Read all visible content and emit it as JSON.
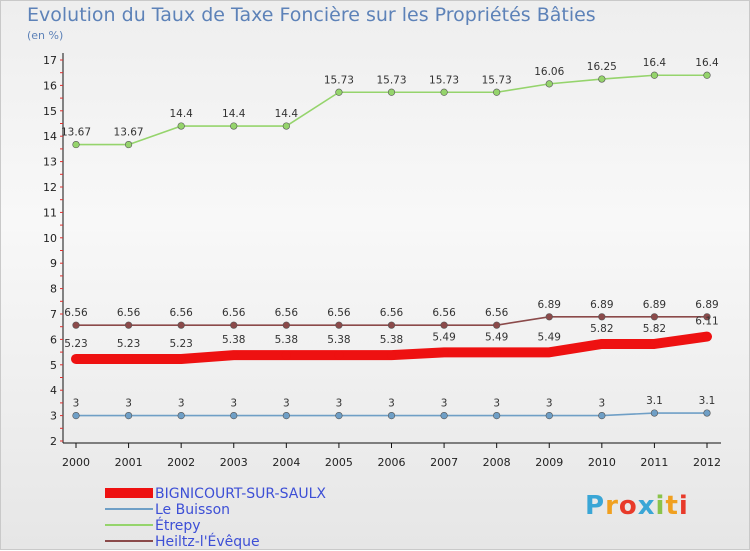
{
  "chart_data": {
    "type": "line",
    "title": "Evolution du Taux de Taxe Foncière sur les Propriétés Bâties",
    "unit": "(en %)",
    "x": [
      "2000",
      "2001",
      "2002",
      "2003",
      "2004",
      "2005",
      "2006",
      "2007",
      "2008",
      "2009",
      "2010",
      "2011",
      "2012"
    ],
    "ylim": [
      2,
      17
    ],
    "yticks": [
      "2",
      "3",
      "4",
      "5",
      "6",
      "7",
      "8",
      "9",
      "10",
      "11",
      "12",
      "13",
      "14",
      "15",
      "16",
      "17"
    ],
    "series": [
      {
        "name": "BIGNICOURT-SUR-SAULX",
        "color": "#ee1111",
        "values": [
          5.23,
          5.23,
          5.23,
          5.38,
          5.38,
          5.38,
          5.38,
          5.49,
          5.49,
          5.49,
          5.82,
          5.82,
          6.11
        ],
        "labels": [
          "5.23",
          "5.23",
          "5.23",
          "5.38",
          "5.38",
          "5.38",
          "5.38",
          "5.49",
          "5.49",
          "5.49",
          "5.82",
          "5.82",
          "6.11"
        ]
      },
      {
        "name": "Le Buisson",
        "color": "#6f9fc6",
        "values": [
          3,
          3,
          3,
          3,
          3,
          3,
          3,
          3,
          3,
          3,
          3,
          3.1,
          3.1
        ],
        "labels": [
          "3",
          "3",
          "3",
          "3",
          "3",
          "3",
          "3",
          "3",
          "3",
          "3",
          "3",
          "3.1",
          "3.1"
        ]
      },
      {
        "name": "Étrepy",
        "color": "#95d46c",
        "values": [
          13.67,
          13.67,
          14.4,
          14.4,
          14.4,
          15.73,
          15.73,
          15.73,
          15.73,
          16.06,
          16.25,
          16.4,
          16.4
        ],
        "labels": [
          "13.67",
          "13.67",
          "14.4",
          "14.4",
          "14.4",
          "15.73",
          "15.73",
          "15.73",
          "15.73",
          "16.06",
          "16.25",
          "16.4",
          "16.4"
        ]
      },
      {
        "name": "Heiltz-l'Évêque",
        "color": "#8b4a4a",
        "values": [
          6.56,
          6.56,
          6.56,
          6.56,
          6.56,
          6.56,
          6.56,
          6.56,
          6.56,
          6.89,
          6.89,
          6.89,
          6.89
        ],
        "labels": [
          "6.56",
          "6.56",
          "6.56",
          "6.56",
          "6.56",
          "6.56",
          "6.56",
          "6.56",
          "6.56",
          "6.89",
          "6.89",
          "6.89",
          "6.89"
        ]
      }
    ]
  },
  "logo": {
    "text": "Proxiti",
    "letters": [
      "P",
      "r",
      "o",
      "x",
      "i",
      "t",
      "i"
    ],
    "colors": [
      "#3aa6d6",
      "#f0a020",
      "#e83a2a",
      "#3aa6d6",
      "#8bc34a",
      "#f0a020",
      "#e83a2a"
    ]
  }
}
